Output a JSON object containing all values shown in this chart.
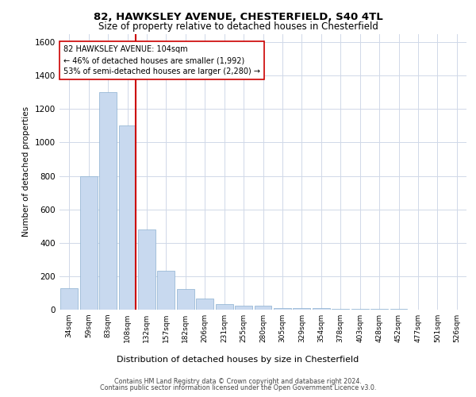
{
  "title1": "82, HAWKSLEY AVENUE, CHESTERFIELD, S40 4TL",
  "title2": "Size of property relative to detached houses in Chesterfield",
  "xlabel": "Distribution of detached houses by size in Chesterfield",
  "ylabel": "Number of detached properties",
  "categories": [
    "34sqm",
    "59sqm",
    "83sqm",
    "108sqm",
    "132sqm",
    "157sqm",
    "182sqm",
    "206sqm",
    "231sqm",
    "255sqm",
    "280sqm",
    "305sqm",
    "329sqm",
    "354sqm",
    "378sqm",
    "403sqm",
    "428sqm",
    "452sqm",
    "477sqm",
    "501sqm",
    "526sqm"
  ],
  "values": [
    130,
    800,
    1300,
    1100,
    480,
    235,
    125,
    65,
    35,
    25,
    25,
    10,
    10,
    10,
    5,
    5,
    5,
    5,
    2,
    2,
    2
  ],
  "bar_color": "#c8d9ef",
  "bar_edge_color": "#8ab0d0",
  "vline_color": "#cc0000",
  "vline_x": 3.45,
  "annotation_text": "82 HAWKSLEY AVENUE: 104sqm\n← 46% of detached houses are smaller (1,992)\n53% of semi-detached houses are larger (2,280) →",
  "annotation_box_color": "#ffffff",
  "annotation_box_edge": "#cc0000",
  "ylim": [
    0,
    1650
  ],
  "yticks": [
    0,
    200,
    400,
    600,
    800,
    1000,
    1200,
    1400,
    1600
  ],
  "footer1": "Contains HM Land Registry data © Crown copyright and database right 2024.",
  "footer2": "Contains public sector information licensed under the Open Government Licence v3.0.",
  "background_color": "#ffffff",
  "grid_color": "#d0d8e8",
  "title1_fontsize": 9.5,
  "title2_fontsize": 8.5,
  "ylabel_fontsize": 7.5,
  "xlabel_fontsize": 8.0,
  "tick_fontsize": 7.5,
  "xtick_fontsize": 6.5,
  "annot_fontsize": 7.0,
  "footer_fontsize": 5.8
}
